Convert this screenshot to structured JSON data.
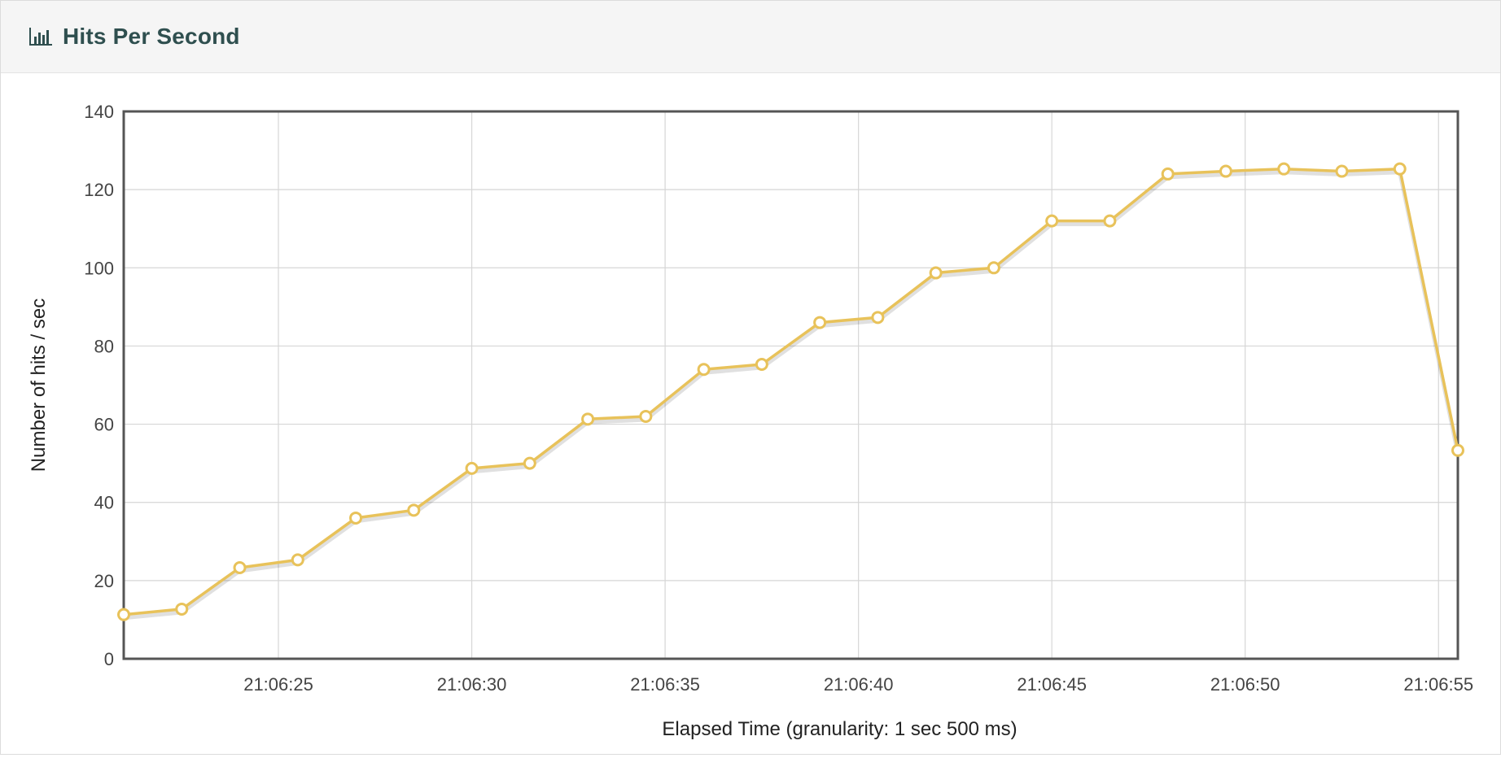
{
  "panel": {
    "title": "Hits Per Second",
    "icon": "bar-chart-icon"
  },
  "chart_data": {
    "type": "line",
    "title": "",
    "xlabel": "Elapsed Time (granularity: 1 sec 500 ms)",
    "ylabel": "Number of hits / sec",
    "ylim": [
      0,
      140
    ],
    "yticks": [
      "0",
      "20",
      "40",
      "60",
      "80",
      "100",
      "120",
      "140"
    ],
    "xlim": [
      "21:06:21.0",
      "21:06:55.5"
    ],
    "xticks": [
      {
        "t": 25,
        "label": "21:06:25"
      },
      {
        "t": 30,
        "label": "21:06:30"
      },
      {
        "t": 35,
        "label": "21:06:35"
      },
      {
        "t": 40,
        "label": "21:06:40"
      },
      {
        "t": 45,
        "label": "21:06:45"
      },
      {
        "t": 50,
        "label": "21:06:50"
      },
      {
        "t": 55,
        "label": "21:06:55"
      }
    ],
    "grid": true,
    "legend": "none",
    "series": [
      {
        "color": "#e8c25a",
        "points": [
          {
            "x": "21:06:21.0",
            "y": 11.3
          },
          {
            "x": "21:06:22.5",
            "y": 12.7
          },
          {
            "x": "21:06:24.0",
            "y": 23.3
          },
          {
            "x": "21:06:25.5",
            "y": 25.3
          },
          {
            "x": "21:06:27.0",
            "y": 36.0
          },
          {
            "x": "21:06:28.5",
            "y": 38.0
          },
          {
            "x": "21:06:30.0",
            "y": 48.7
          },
          {
            "x": "21:06:31.5",
            "y": 50.0
          },
          {
            "x": "21:06:33.0",
            "y": 61.3
          },
          {
            "x": "21:06:34.5",
            "y": 62.0
          },
          {
            "x": "21:06:36.0",
            "y": 74.0
          },
          {
            "x": "21:06:37.5",
            "y": 75.3
          },
          {
            "x": "21:06:39.0",
            "y": 86.0
          },
          {
            "x": "21:06:40.5",
            "y": 87.3
          },
          {
            "x": "21:06:42.0",
            "y": 98.7
          },
          {
            "x": "21:06:43.5",
            "y": 100.0
          },
          {
            "x": "21:06:45.0",
            "y": 112.0
          },
          {
            "x": "21:06:46.5",
            "y": 112.0
          },
          {
            "x": "21:06:48.0",
            "y": 124.0
          },
          {
            "x": "21:06:49.5",
            "y": 124.7
          },
          {
            "x": "21:06:51.0",
            "y": 125.3
          },
          {
            "x": "21:06:52.5",
            "y": 124.7
          },
          {
            "x": "21:06:54.0",
            "y": 125.3
          },
          {
            "x": "21:06:55.5",
            "y": 53.3
          }
        ]
      }
    ]
  }
}
